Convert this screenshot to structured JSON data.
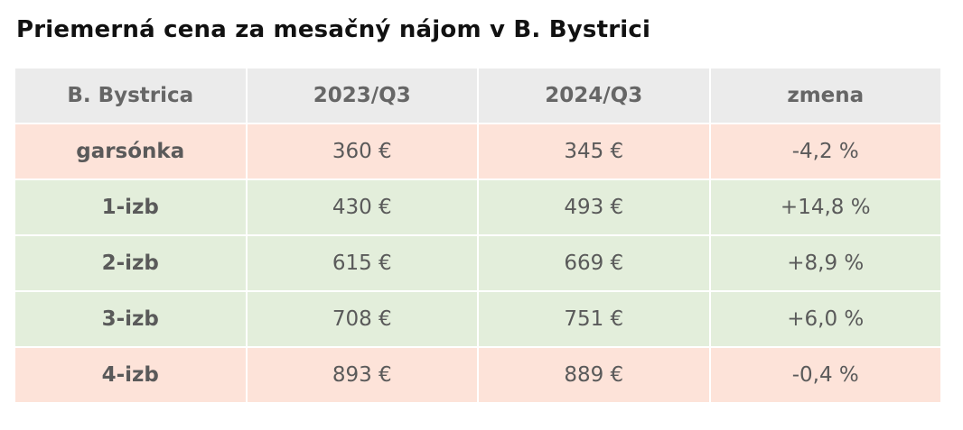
{
  "title": "Priemerná cena za mesačný nájom v B. Bystrici",
  "table": {
    "header": [
      "B. Bystrica",
      "2023/Q3",
      "2024/Q3",
      "zmena"
    ],
    "rows": [
      [
        "garsónka",
        "360 €",
        "345 €",
        "-4,2 %"
      ],
      [
        "1-izb",
        "430 €",
        "493 €",
        "+14,8 %"
      ],
      [
        "2-izb",
        "615 €",
        "669 €",
        "+8,9 %"
      ],
      [
        "3-izb",
        "708 €",
        "751 €",
        "+6,0 %"
      ],
      [
        "4-izb",
        "893 €",
        "889 €",
        "-0,4 %"
      ]
    ]
  }
}
